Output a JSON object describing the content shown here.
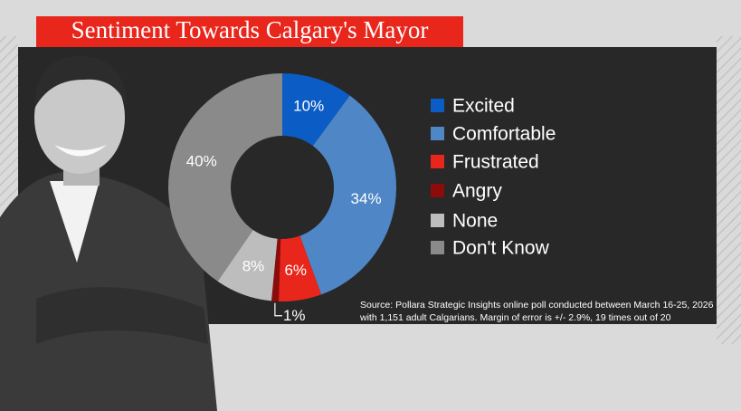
{
  "chart_data": {
    "type": "donut",
    "title": "Sentiment Towards Calgary's Mayor",
    "categories": [
      "Excited",
      "Comfortable",
      "Frustrated",
      "Angry",
      "None",
      "Don't Know"
    ],
    "values": [
      10,
      34,
      6,
      1,
      8,
      40
    ],
    "value_labels": [
      "10%",
      "34%",
      "6%",
      "1%",
      "8%",
      "40%"
    ],
    "colors": [
      "#0b5cc5",
      "#4f86c6",
      "#e8261b",
      "#8c0b0b",
      "#bdbdbd",
      "#8a8a8a"
    ],
    "source": [
      "Source: Pollara Strategic Insights online poll conducted between March 16-25, 2026",
      "with 1,151 adult Calgarians. Margin of error is +/- 2.9%, 19 times out of 20"
    ]
  }
}
